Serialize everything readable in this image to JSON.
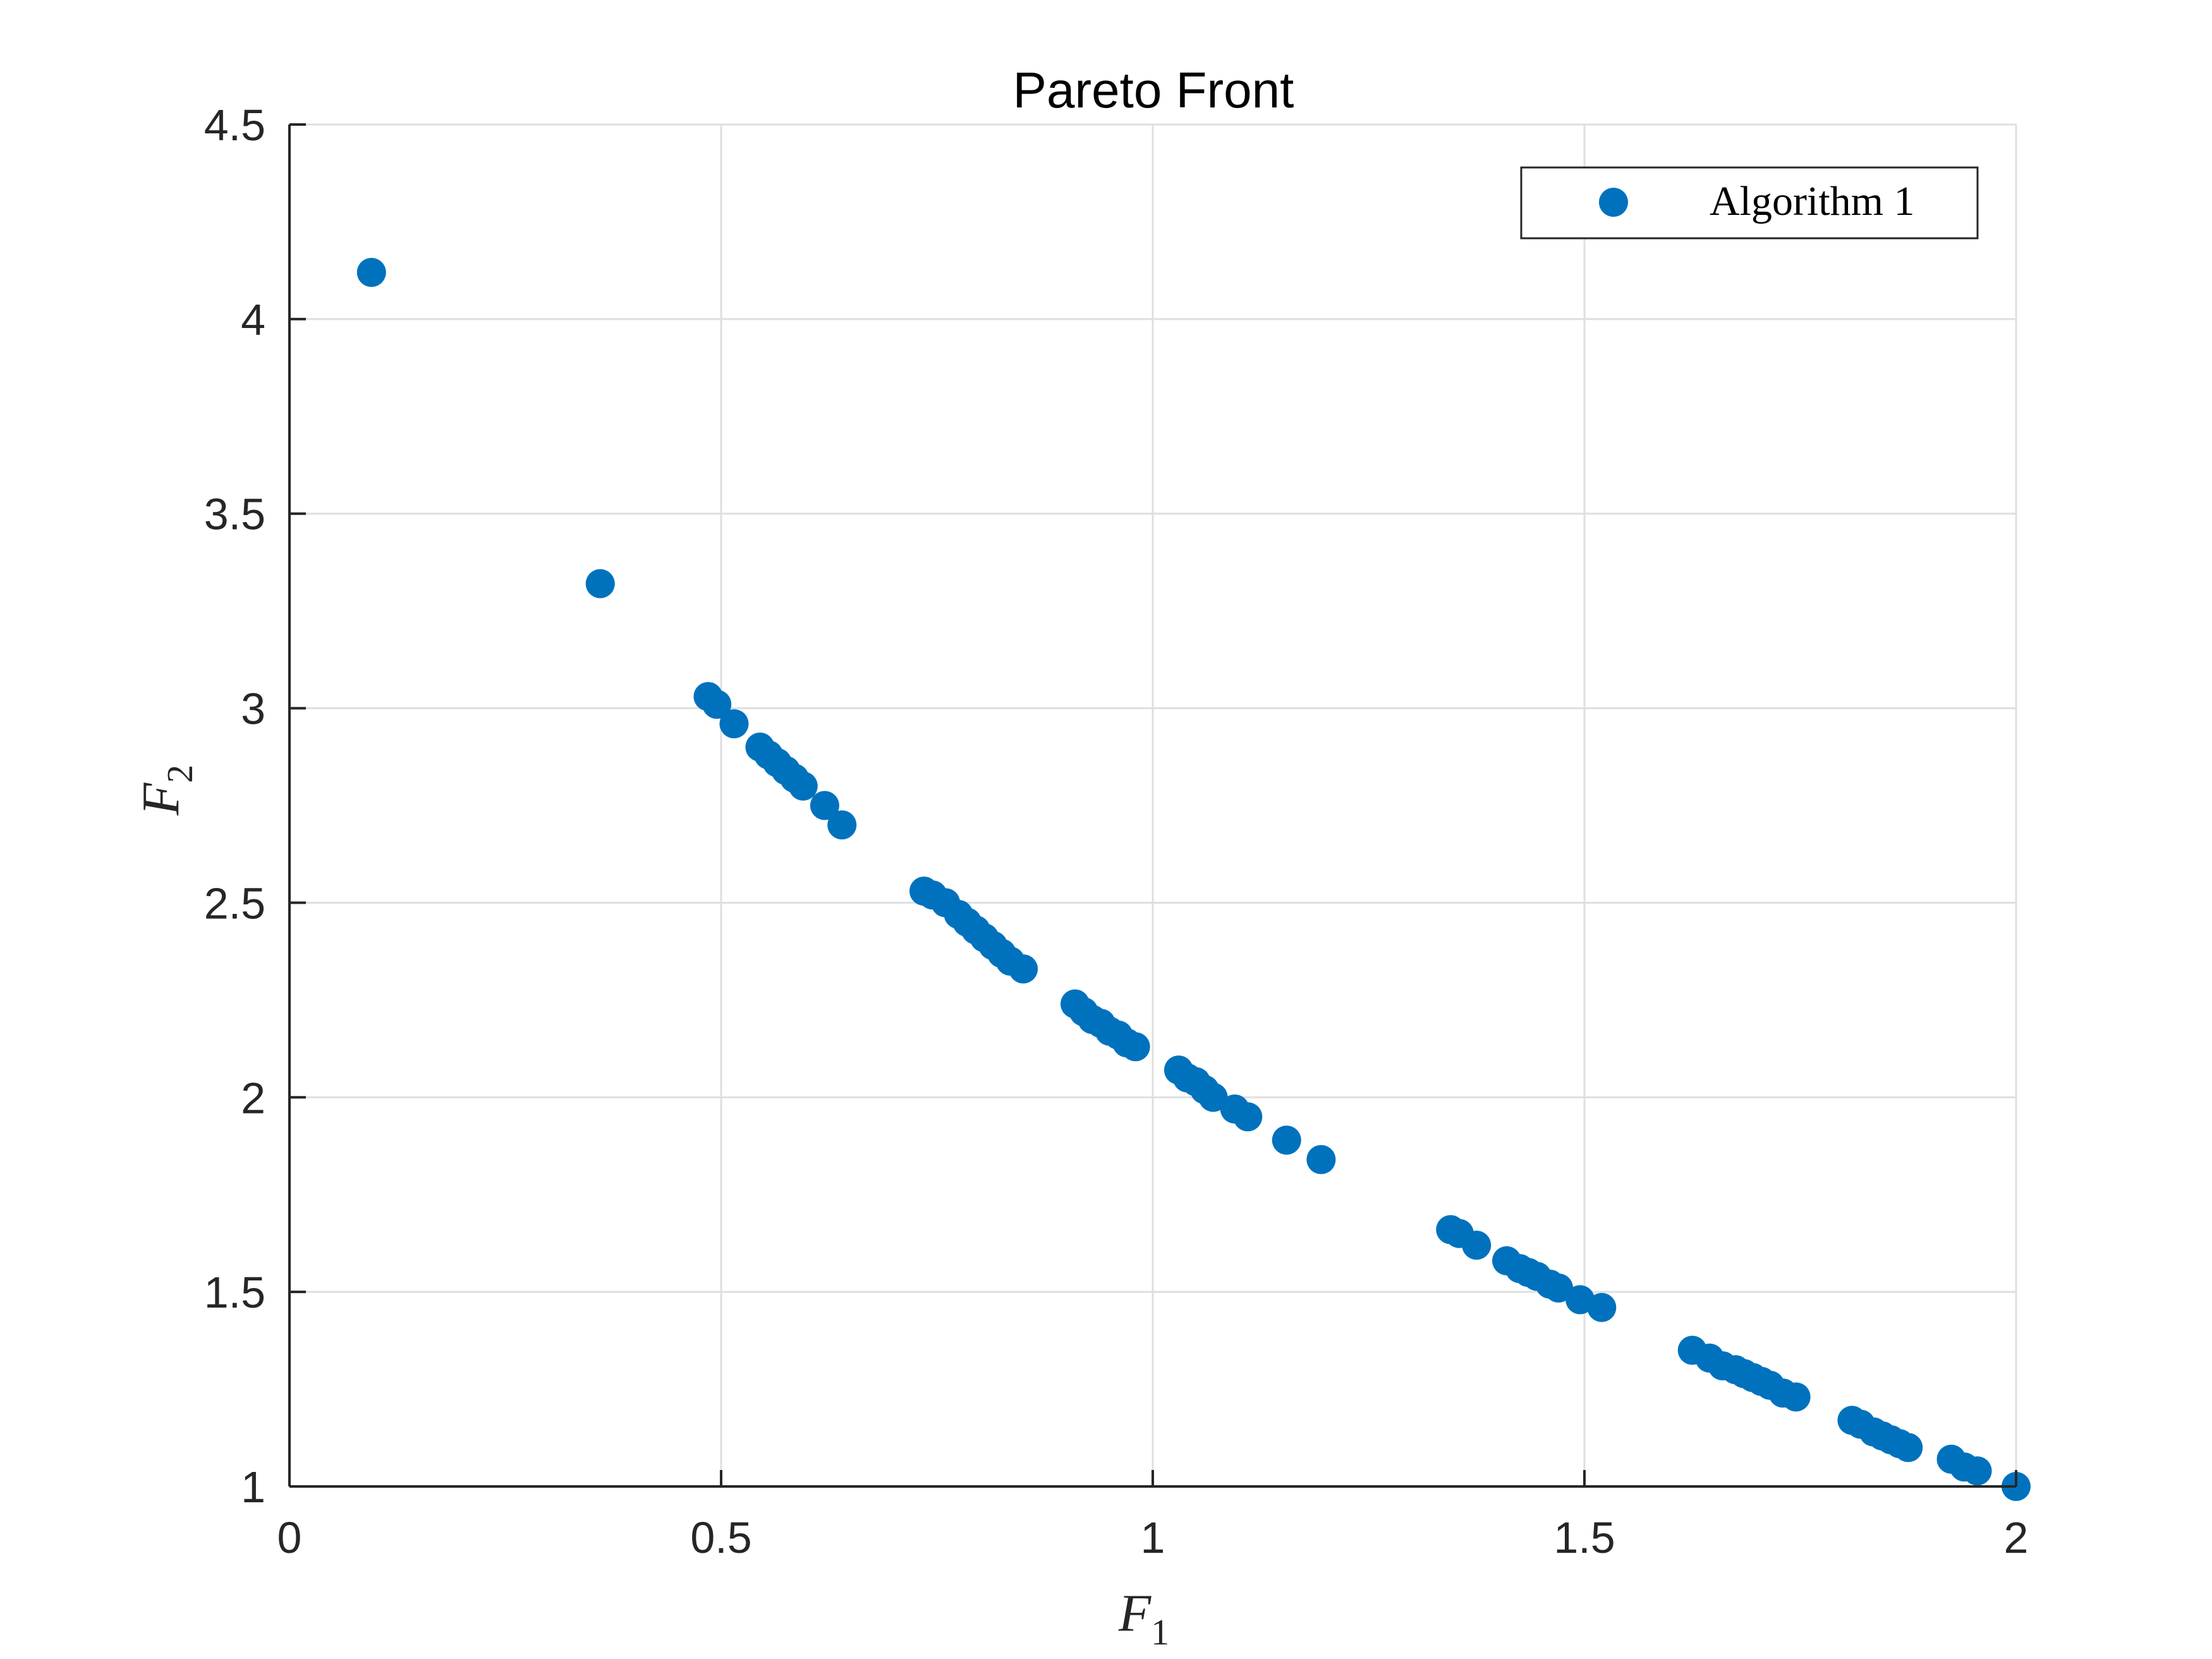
{
  "chart_data": {
    "type": "scatter",
    "title": "Pareto Front",
    "xlabel": "F",
    "xlabel_sub": "1",
    "ylabel": "F",
    "ylabel_sub": "2",
    "xlim": [
      0,
      2
    ],
    "ylim": [
      1,
      4.5
    ],
    "xticks": [
      0,
      0.5,
      1,
      1.5,
      2
    ],
    "xtick_labels": [
      "0",
      "0.5",
      "1",
      "1.5",
      "2"
    ],
    "yticks": [
      1,
      1.5,
      2,
      2.5,
      3,
      3.5,
      4,
      4.5
    ],
    "ytick_labels": [
      "1",
      "1.5",
      "2",
      "2.5",
      "3",
      "3.5",
      "4",
      "4.5"
    ],
    "grid": true,
    "legend_position": "top-right",
    "colors": {
      "series": "#0072BD",
      "grid": "#dfdfdf",
      "axis": "#262626"
    },
    "series": [
      {
        "name": "Algorithm 1",
        "x": [
          0.095,
          0.36,
          0.485,
          0.495,
          0.515,
          0.545,
          0.555,
          0.565,
          0.575,
          0.585,
          0.595,
          0.62,
          0.64,
          0.735,
          0.745,
          0.76,
          0.775,
          0.785,
          0.795,
          0.805,
          0.815,
          0.825,
          0.835,
          0.85,
          0.91,
          0.92,
          0.93,
          0.94,
          0.95,
          0.96,
          0.97,
          0.98,
          1.03,
          1.04,
          1.05,
          1.06,
          1.07,
          1.095,
          1.11,
          1.155,
          1.195,
          1.345,
          1.355,
          1.375,
          1.41,
          1.425,
          1.435,
          1.445,
          1.46,
          1.47,
          1.495,
          1.52,
          1.625,
          1.645,
          1.66,
          1.675,
          1.685,
          1.695,
          1.705,
          1.715,
          1.73,
          1.745,
          1.81,
          1.82,
          1.835,
          1.845,
          1.855,
          1.865,
          1.875,
          1.925,
          1.94,
          1.955,
          2.0
        ],
        "y": [
          4.12,
          3.32,
          3.03,
          3.01,
          2.96,
          2.9,
          2.88,
          2.86,
          2.84,
          2.82,
          2.8,
          2.75,
          2.7,
          2.53,
          2.52,
          2.5,
          2.47,
          2.45,
          2.43,
          2.41,
          2.39,
          2.37,
          2.35,
          2.33,
          2.24,
          2.22,
          2.2,
          2.19,
          2.17,
          2.16,
          2.14,
          2.13,
          2.07,
          2.05,
          2.04,
          2.02,
          2.0,
          1.97,
          1.95,
          1.89,
          1.84,
          1.66,
          1.65,
          1.62,
          1.58,
          1.56,
          1.55,
          1.54,
          1.52,
          1.51,
          1.48,
          1.46,
          1.35,
          1.33,
          1.31,
          1.3,
          1.29,
          1.28,
          1.27,
          1.26,
          1.24,
          1.23,
          1.17,
          1.16,
          1.14,
          1.13,
          1.12,
          1.11,
          1.1,
          1.07,
          1.05,
          1.04,
          1.0
        ]
      }
    ]
  }
}
